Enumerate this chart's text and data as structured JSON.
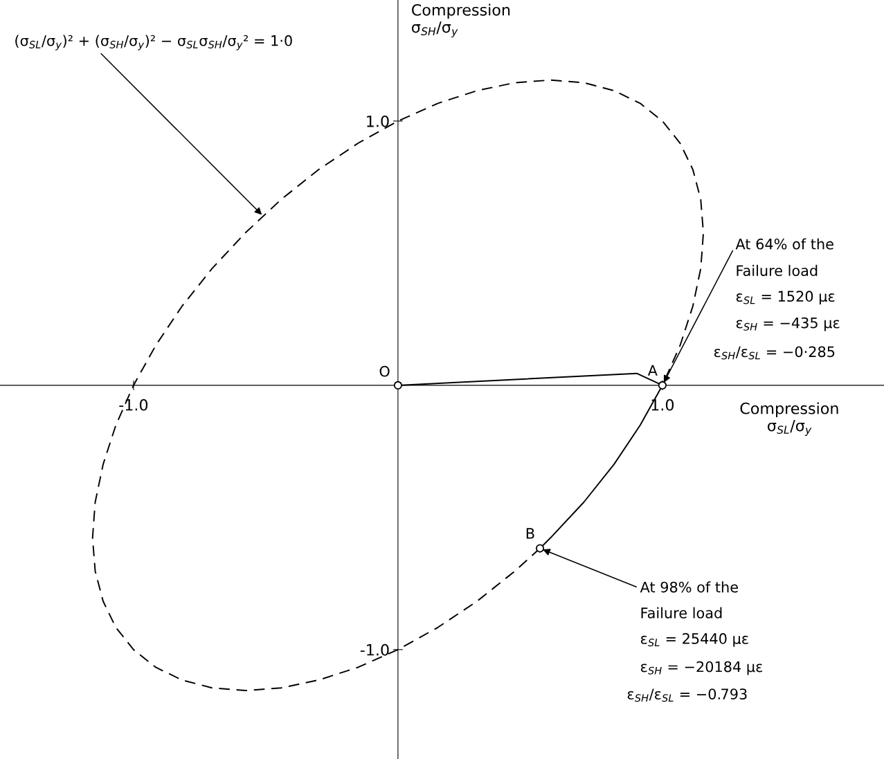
{
  "chart_data": {
    "type": "line",
    "xlabel": "Compression\nσ$_{SL}$/σ$_{y}$",
    "ylabel": "Compression\nσ$_{SH}$/σ$_{y}$",
    "xlim": [
      -1.505,
      1.838
    ],
    "ylim": [
      -1.414,
      1.458
    ],
    "xticks": [
      {
        "value": -1,
        "label": "-1.0"
      },
      {
        "value": 1,
        "label": "1.0"
      }
    ],
    "yticks": [
      {
        "value": -1,
        "label": "-1.0"
      },
      {
        "value": 1,
        "label": "1.0"
      }
    ],
    "grid": false,
    "series": [
      {
        "color": "#000000",
        "line_style": "dashed",
        "x": [
          0.537,
          0.442,
          0.299,
          0.151,
          0,
          -0.151,
          -0.299,
          -0.442,
          -0.577,
          -0.703,
          -0.817,
          -0.916,
          -1,
          -1.067,
          -1.115,
          -1.145,
          -1.155,
          -1.145,
          -1.115,
          -1.067,
          -1,
          -0.916,
          -0.817,
          -0.703,
          -0.577,
          -0.442,
          -0.299,
          -0.151,
          0,
          0.151,
          0.299,
          0.442,
          0.577,
          0.703,
          0.817,
          0.916,
          1,
          1.067,
          1.115,
          1.145,
          1.155,
          1.145,
          1.115,
          1.067,
          1
        ],
        "values": [
          -0.617,
          -0.703,
          -0.817,
          -0.916,
          -1,
          -1.067,
          -1.115,
          -1.145,
          -1.155,
          -1.145,
          -1.115,
          -1.067,
          -1,
          -0.916,
          -0.817,
          -0.703,
          -0.577,
          -0.442,
          -0.299,
          -0.151,
          0,
          0.151,
          0.299,
          0.442,
          0.577,
          0.703,
          0.817,
          0.916,
          1,
          1.067,
          1.115,
          1.145,
          1.155,
          1.145,
          1.115,
          1.067,
          1,
          0.916,
          0.817,
          0.703,
          0.577,
          0.442,
          0.299,
          0.151,
          0
        ]
      },
      {
        "color": "#000000",
        "line_style": "solid",
        "x": [
          0,
          0.903,
          1.0,
          0.916,
          0.817,
          0.703,
          0.577,
          0.537
        ],
        "values": [
          0,
          0.045,
          0,
          -0.151,
          -0.299,
          -0.442,
          -0.577,
          -0.617
        ]
      },
      {
        "type": "scatter",
        "color": "#000000",
        "marker": "circle",
        "x": [
          0,
          1.0,
          0.537
        ],
        "values": [
          0,
          0,
          -0.617
        ]
      }
    ],
    "annotations": [
      "(σ$_{SL}$/σ$_{y}$)² + (σ$_{SH}$/σ$_{y}$)² − σ$_{SL}$σ$_{SH}$/σ$_{y}$² = 1·0",
      {
        "text": "O",
        "x": 0,
        "y": 0
      },
      {
        "text": "A",
        "x": 1.0,
        "y": 0
      },
      {
        "text": "B",
        "x": 0.537,
        "y": -0.617
      },
      {
        "text": "At 64% of the",
        "x": 1.0,
        "y": 0
      },
      "Failure load",
      "ε$_{SL}$ = 1520 με",
      "ε$_{SH}$ = −435 με",
      "ε$_{SH}$/ε$_{SL}$ = −0·285",
      {
        "text": "At 98% of the",
        "x": 0.537,
        "y": -0.617
      },
      "Failure load",
      "ε$_{SL}$ = 25440 με",
      "ε$_{SH}$ = −20184 με",
      "ε$_{SH}$/ε$_{SL}$ = −0.793"
    ]
  }
}
